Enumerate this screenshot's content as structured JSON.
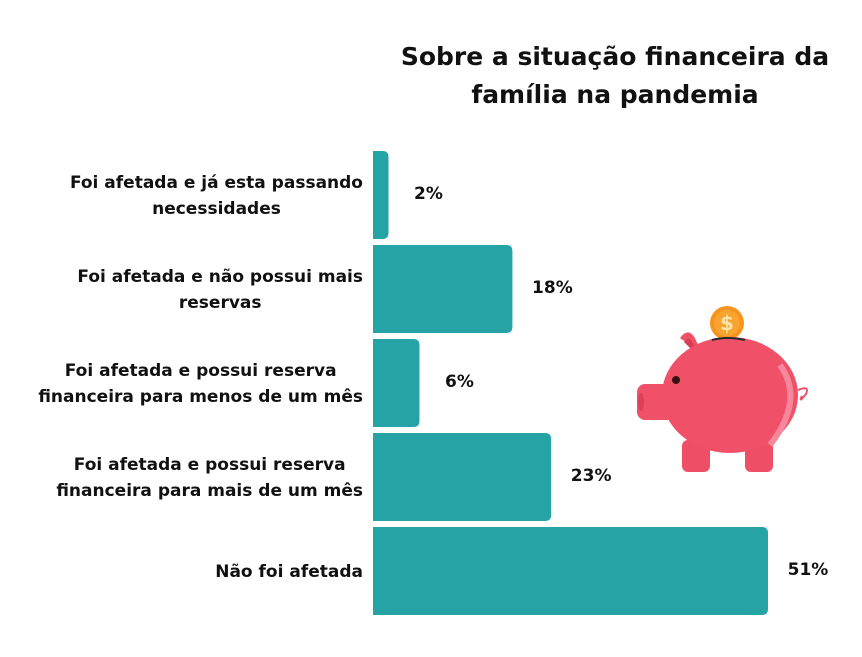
{
  "chart_data": {
    "type": "bar",
    "orientation": "horizontal",
    "title": "Sobre a situação financeira da família na pandemia",
    "categories": [
      [
        "Foi afetada e já esta passando",
        "necessidades"
      ],
      [
        "Foi afetada e não possui mais",
        "reservas"
      ],
      [
        "Foi afetada e possui reserva",
        "financeira para menos de um mês"
      ],
      [
        "Foi afetada e possui reserva",
        "financeira para mais de um mês"
      ],
      [
        "Não foi afetada"
      ]
    ],
    "values": [
      2,
      18,
      6,
      23,
      51
    ],
    "value_labels": [
      "2%",
      "18%",
      "6%",
      "23%",
      "51%"
    ],
    "unit": "%",
    "xlim": [
      0,
      51
    ],
    "bar_color": "#26a3a5",
    "grid": false
  },
  "illustration": "piggy-bank-with-coin"
}
